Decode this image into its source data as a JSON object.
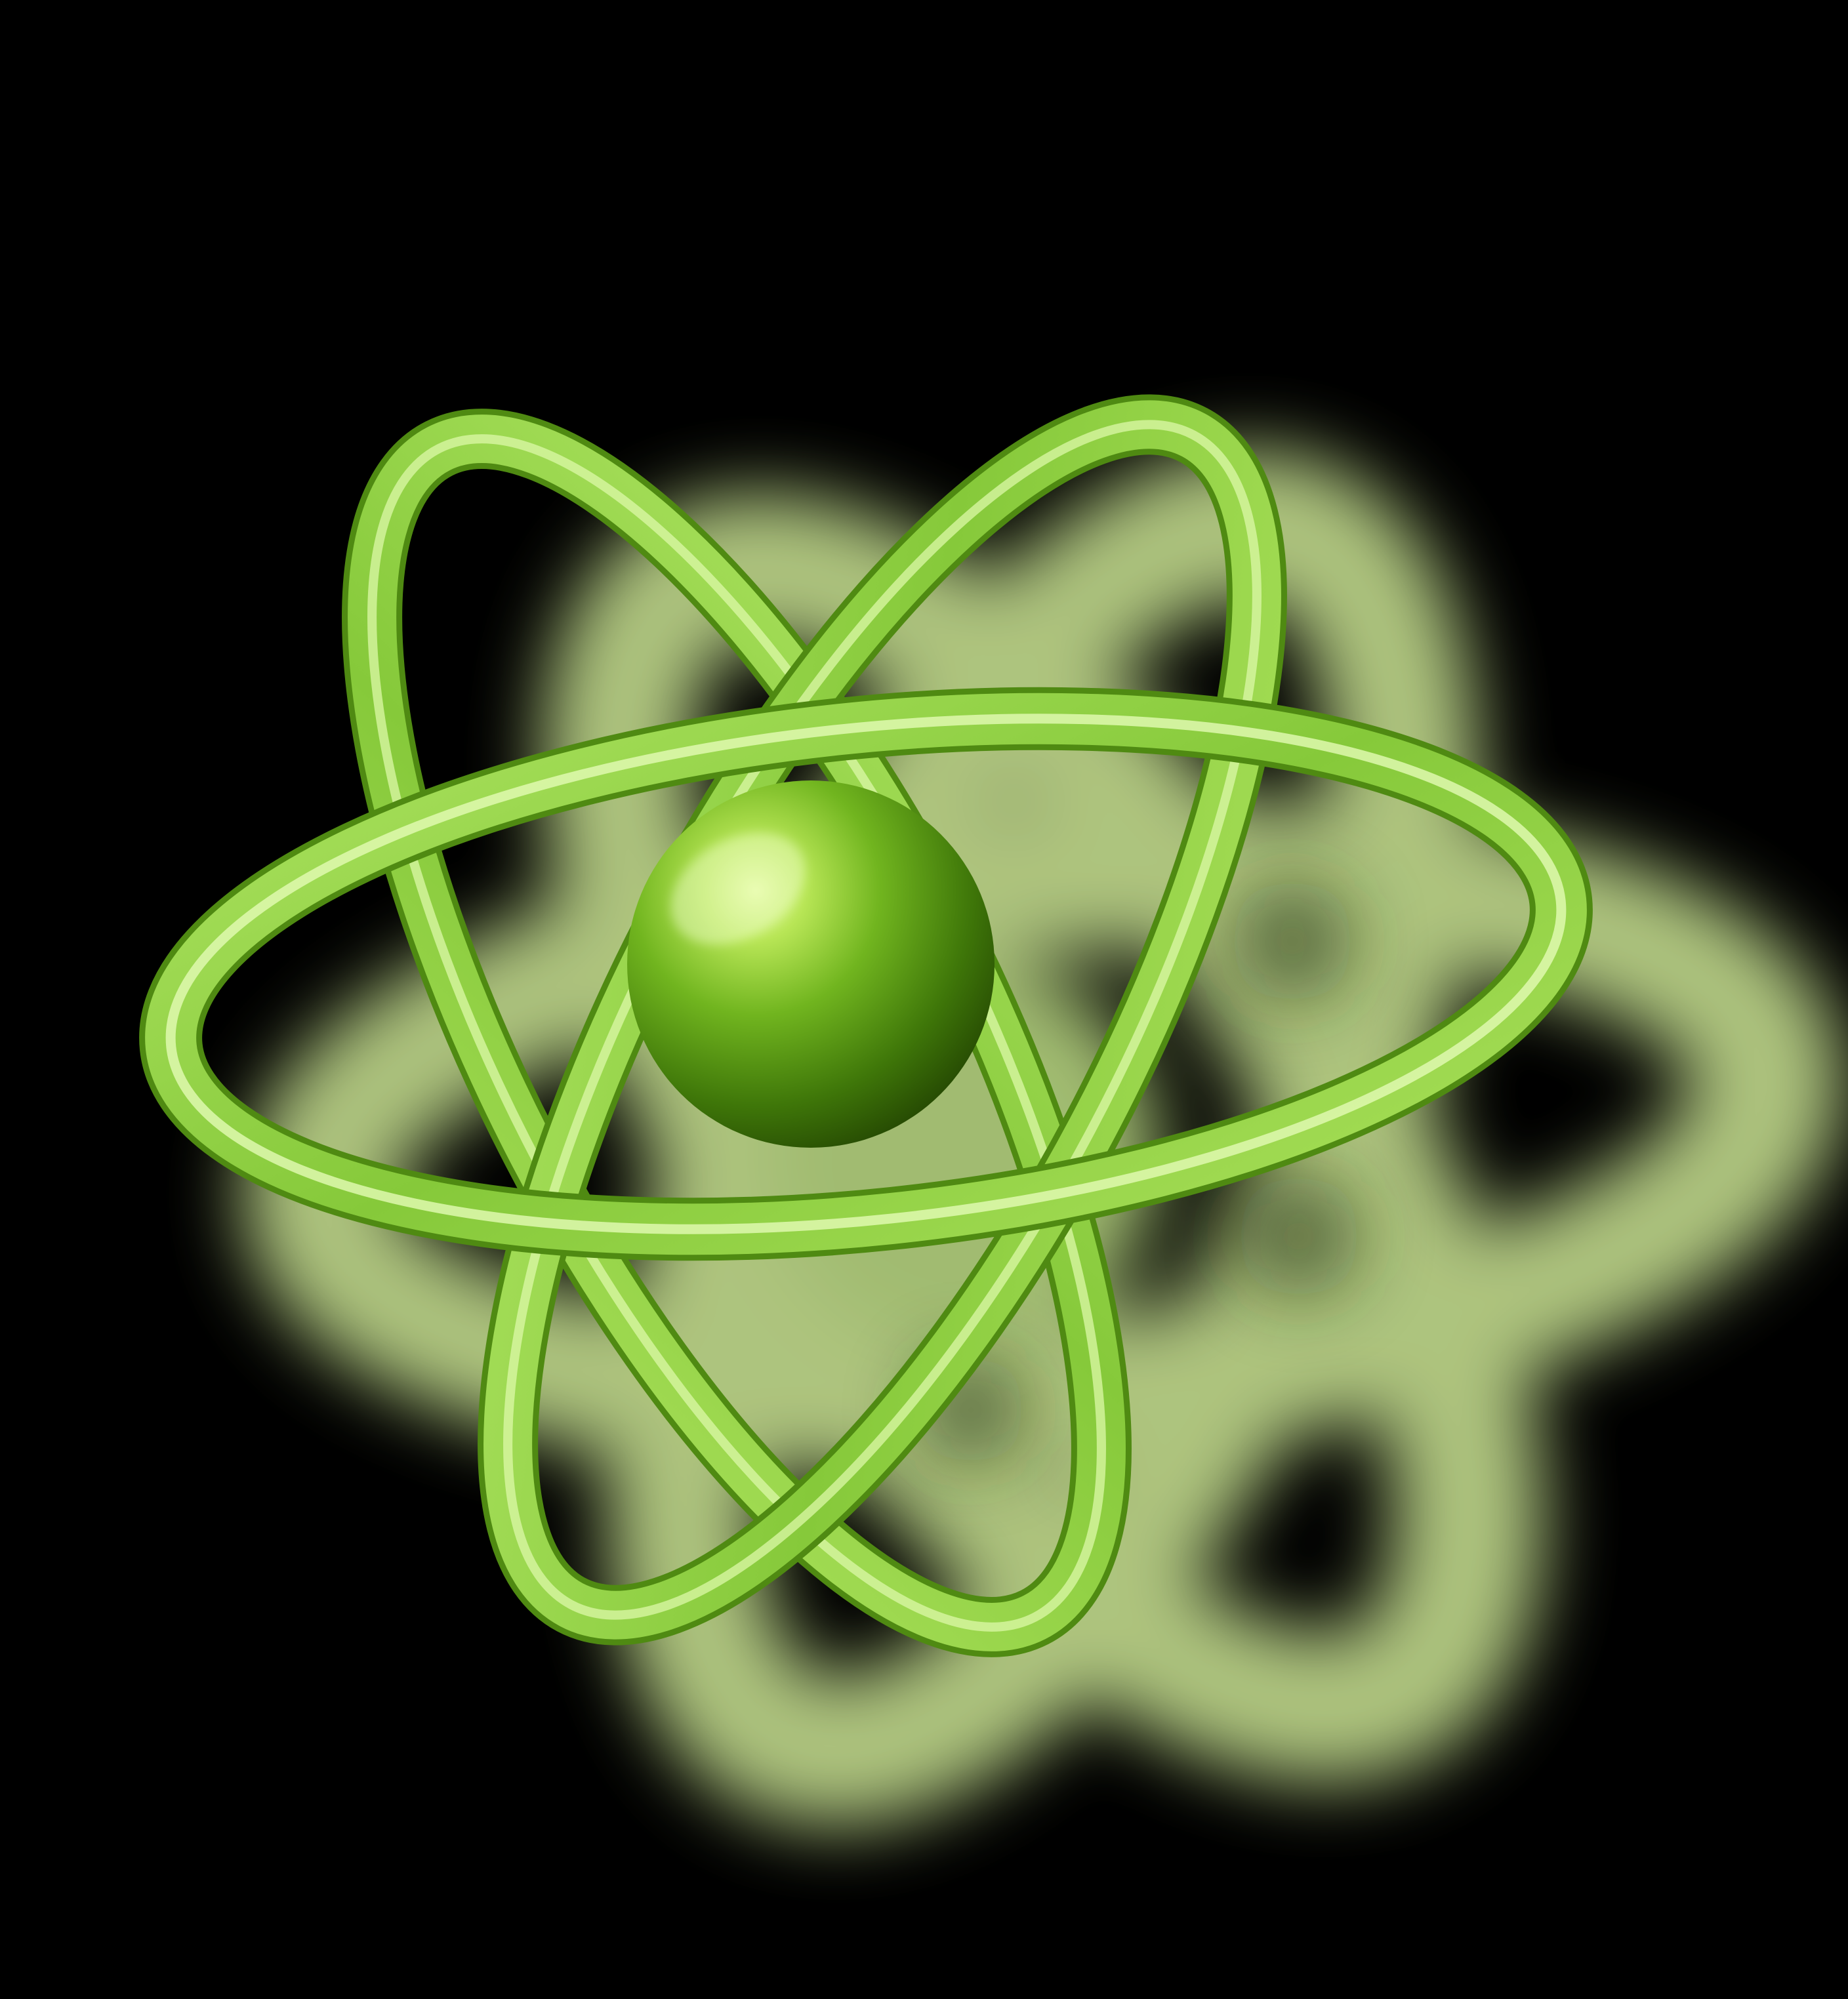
{
  "image": {
    "subject": "atom-symbol",
    "background_color": "#000000",
    "colors": {
      "ring_main": "#8fcf3c",
      "ring_highlight": "#d8f7a0",
      "ring_shadow": "#5c8f1f",
      "nucleus_light": "#c8ee6a",
      "nucleus_mid": "#6fb61d",
      "nucleus_dark": "#2f5a06",
      "glow": "#c9e88a"
    }
  }
}
